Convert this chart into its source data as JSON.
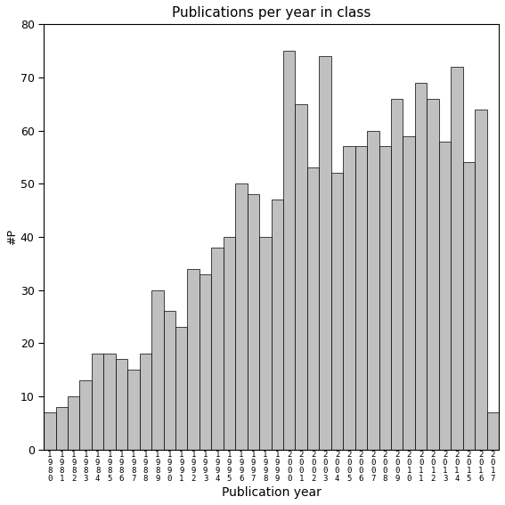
{
  "title": "Publications per year in class",
  "xlabel": "Publication year",
  "ylabel": "#P",
  "ylim": [
    0,
    80
  ],
  "yticks": [
    0,
    10,
    20,
    30,
    40,
    50,
    60,
    70,
    80
  ],
  "bar_color": "#c0c0c0",
  "bar_edgecolor": "#000000",
  "years": [
    1980,
    1981,
    1982,
    1983,
    1984,
    1985,
    1986,
    1987,
    1988,
    1989,
    1990,
    1991,
    1992,
    1993,
    1994,
    1995,
    1996,
    1997,
    1998,
    1999,
    2000,
    2001,
    2002,
    2003,
    2004,
    2005,
    2006,
    2007,
    2008,
    2009,
    2010,
    2011,
    2012,
    2013,
    2014,
    2015,
    2016,
    2017
  ],
  "values": [
    7,
    8,
    10,
    13,
    18,
    18,
    17,
    15,
    18,
    30,
    26,
    23,
    34,
    33,
    38,
    40,
    50,
    48,
    40,
    47,
    75,
    65,
    53,
    74,
    52,
    57,
    57,
    60,
    57,
    66,
    59,
    69,
    66,
    58,
    72,
    54,
    64,
    7
  ]
}
